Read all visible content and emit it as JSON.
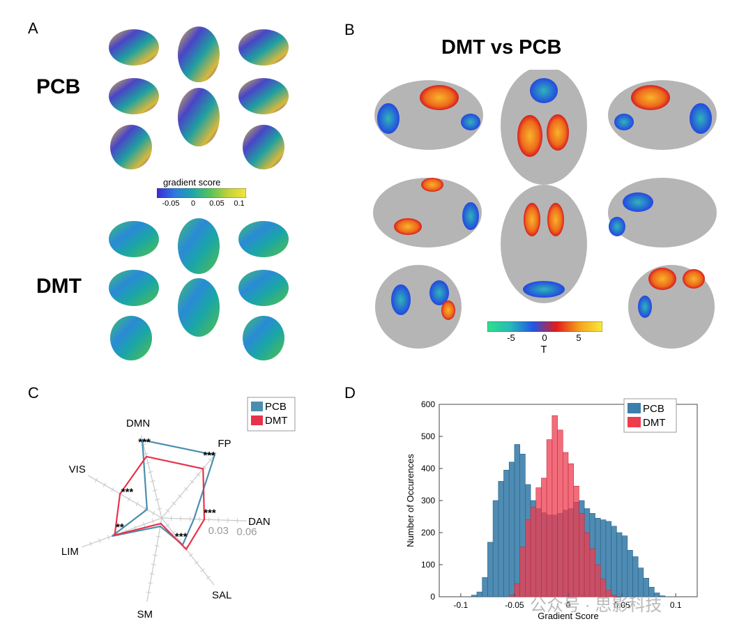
{
  "panels": {
    "a": "A",
    "b": "B",
    "c": "C",
    "d": "D"
  },
  "panel_a": {
    "condition_top": "PCB",
    "condition_bottom": "DMT",
    "colorbar": {
      "label": "gradient score",
      "ticks": [
        "-0.05",
        "0",
        "0.05",
        "0.1"
      ],
      "stops": [
        "#3b2bd1",
        "#2f79e0",
        "#1ea7a8",
        "#59c25a",
        "#c3d23a",
        "#f1e63a"
      ]
    }
  },
  "panel_b": {
    "title": "DMT vs PCB",
    "colorbar": {
      "label": "T",
      "ticks": [
        "-5",
        "0",
        "5"
      ],
      "stops": [
        "#2fe08a",
        "#27b9b7",
        "#2255e6",
        "#e31b1b",
        "#f4a21e",
        "#f8ea3a"
      ]
    }
  },
  "chart_data": [
    {
      "type": "radar",
      "panel": "C",
      "axes": [
        "DMN",
        "FP",
        "DAN",
        "SAL",
        "SM",
        "LIM",
        "VIS"
      ],
      "rlim": [
        -0.03,
        0.06
      ],
      "rticks": [
        "0.03",
        "0.06"
      ],
      "series": [
        {
          "name": "PCB",
          "color": "#4a8eae",
          "values": [
            0.055,
            0.057,
            0.004,
            0.006,
            -0.021,
            0.026,
            -0.012
          ]
        },
        {
          "name": "DMT",
          "color": "#e8324b",
          "values": [
            0.037,
            0.038,
            0.015,
            0.012,
            -0.024,
            0.023,
            0.021
          ]
        }
      ],
      "significance": [
        {
          "axis": "DMN",
          "label": "***"
        },
        {
          "axis": "FP",
          "label": "***"
        },
        {
          "axis": "DAN",
          "label": "***"
        },
        {
          "axis": "SAL",
          "label": "***"
        },
        {
          "axis": "LIM",
          "label": "**"
        },
        {
          "axis": "VIS",
          "label": "***"
        }
      ],
      "legend": "top-right"
    },
    {
      "type": "histogram",
      "panel": "D",
      "xlabel": "Gradient Score",
      "ylabel": "Number of Occurences",
      "xlim": [
        -0.12,
        0.12
      ],
      "ylim": [
        0,
        600
      ],
      "xticks": [
        "-0.1",
        "-0.05",
        "0",
        "0.05",
        "0.1"
      ],
      "yticks": [
        "0",
        "100",
        "200",
        "300",
        "400",
        "500",
        "600"
      ],
      "legend": "top-right",
      "series": [
        {
          "name": "PCB",
          "color": "#3c7fac",
          "bin_start": -0.09,
          "bin_width": 0.005,
          "values": [
            5,
            15,
            60,
            170,
            300,
            360,
            395,
            420,
            475,
            445,
            350,
            300,
            275,
            262,
            255,
            255,
            260,
            270,
            275,
            295,
            300,
            275,
            260,
            245,
            240,
            235,
            220,
            200,
            190,
            145,
            125,
            90,
            58,
            30,
            12,
            3,
            0
          ]
        },
        {
          "name": "DMT",
          "color": "#ee3c4f",
          "bin_start": -0.09,
          "bin_width": 0.005,
          "values": [
            0,
            0,
            0,
            0,
            0,
            0,
            0,
            5,
            40,
            155,
            240,
            280,
            340,
            370,
            490,
            565,
            520,
            450,
            415,
            345,
            260,
            200,
            150,
            100,
            55,
            20,
            5,
            0,
            0,
            0,
            0,
            0,
            0,
            0,
            0,
            0,
            0
          ]
        }
      ]
    }
  ],
  "watermark": "公众号 · 思影科技"
}
